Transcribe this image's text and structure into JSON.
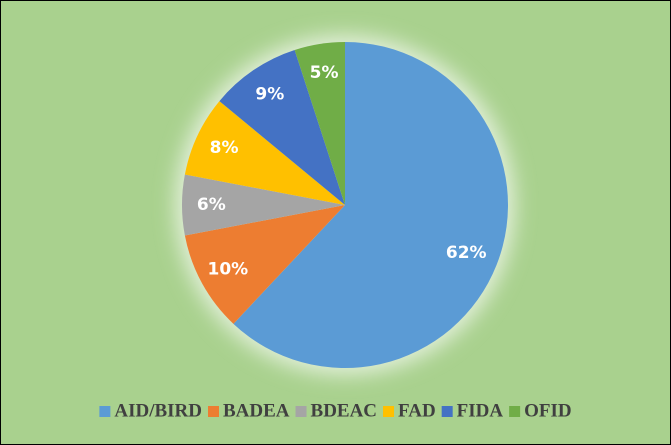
{
  "chart_data": {
    "type": "pie",
    "categories": [
      "AID/BIRD",
      "BADEA",
      "BDEAC",
      "FAD",
      "FIDA",
      "OFID"
    ],
    "values": [
      62,
      10,
      6,
      8,
      9,
      5
    ],
    "value_labels": [
      "62%",
      "10%",
      "6%",
      "8%",
      "9%",
      "5%"
    ],
    "colors": [
      "#5b9bd5",
      "#ed7d31",
      "#a5a5a5",
      "#ffc000",
      "#4472c4",
      "#70ad47"
    ],
    "legend": "bottom"
  }
}
